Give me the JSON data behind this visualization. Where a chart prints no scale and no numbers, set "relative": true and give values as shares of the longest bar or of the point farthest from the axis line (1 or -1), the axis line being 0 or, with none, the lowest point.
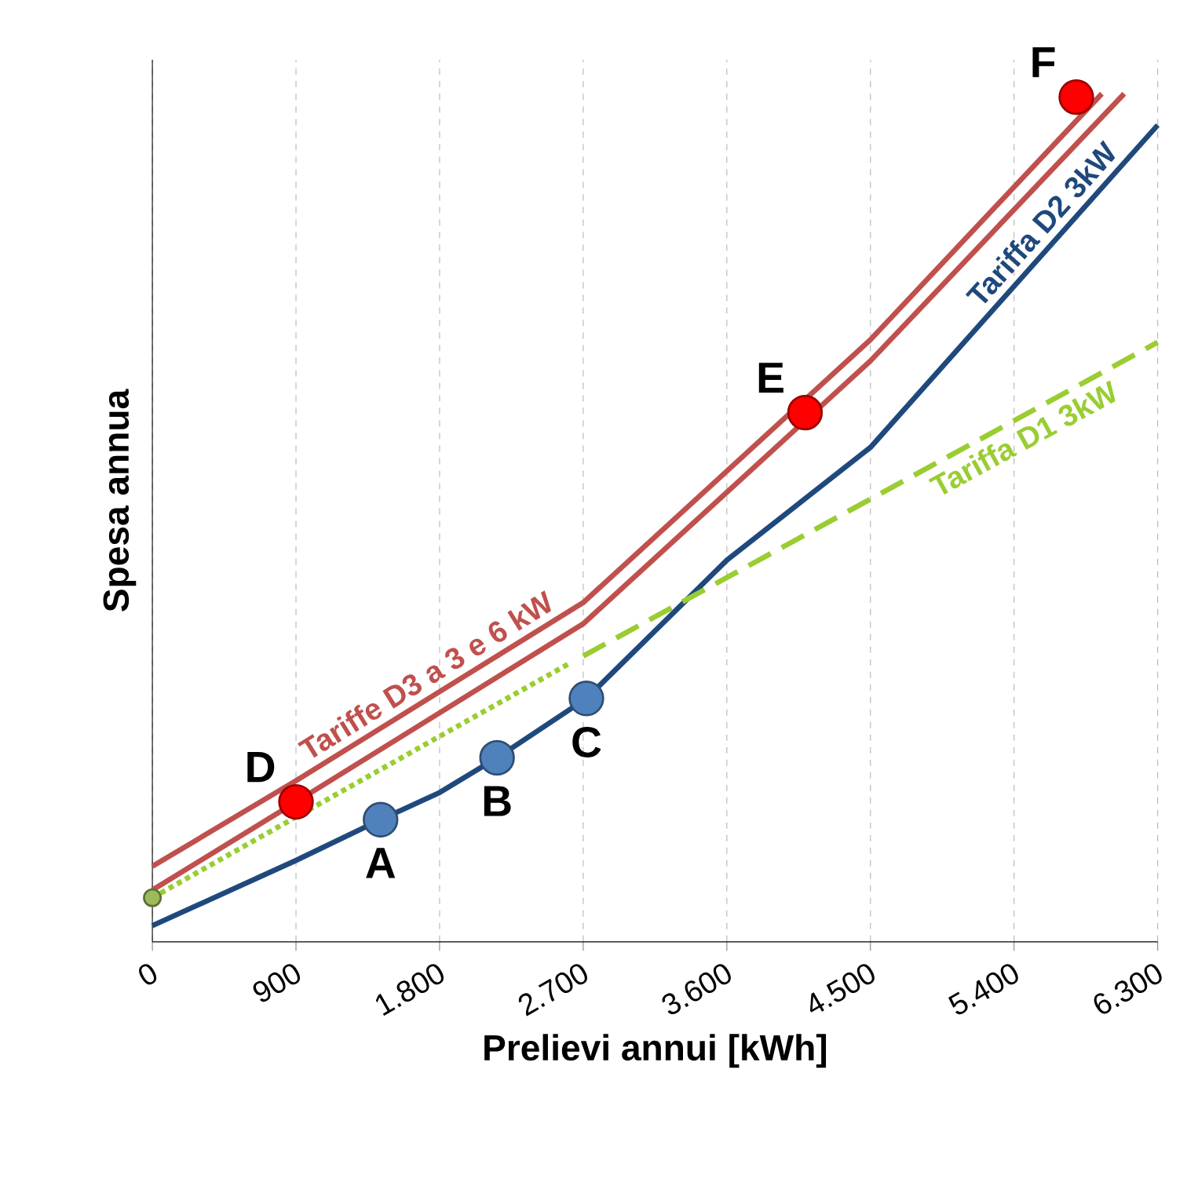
{
  "chart_data": {
    "type": "line",
    "relative": true,
    "xlabel": "Prelievi annui [kWh]",
    "ylabel": "Spesa annua",
    "xlim": [
      0,
      6300
    ],
    "xticks": [
      0,
      900,
      {
        "value": 1800,
        "label": "1.800"
      },
      {
        "value": 2700,
        "label": "2.700"
      },
      {
        "value": 3600,
        "label": "3.600"
      },
      {
        "value": 4500,
        "label": "4.500"
      },
      {
        "value": 5400,
        "label": "5.400"
      },
      {
        "value": 6300,
        "label": "6.300"
      }
    ],
    "grid": "x",
    "series": [
      {
        "name": "Tariffe D3 a 3 e 6 kW",
        "color": "#c0504d",
        "line_style": "solid",
        "x": [
          0,
          900,
          2700,
          4500,
          5950
        ],
        "values": [
          0.089,
          0.19,
          0.4,
          0.71,
          1.0
        ]
      },
      {
        "color": "#c0504d",
        "line_style": "solid",
        "x": [
          0,
          900,
          2700,
          4500,
          6090
        ],
        "values": [
          0.061,
          0.165,
          0.375,
          0.685,
          1.0
        ]
      },
      {
        "name": "Tariffa D2 3kW",
        "color": "#1f497d",
        "line_style": "solid",
        "x": [
          0,
          900,
          1430,
          1800,
          2160,
          2720,
          3600,
          4500,
          6300
        ],
        "values": [
          0.019,
          0.096,
          0.144,
          0.176,
          0.217,
          0.287,
          0.45,
          0.583,
          0.963
        ]
      },
      {
        "color": "#9acd32",
        "line_style": "dotted",
        "x": [
          0,
          2620
        ],
        "values": [
          0.052,
          0.329
        ]
      },
      {
        "name": "Tariffa D1 3kW",
        "color": "#9acd32",
        "line_style": "dashed",
        "x": [
          2700,
          6300
        ],
        "values": [
          0.337,
          0.707
        ]
      },
      {
        "type": "scatter",
        "marker": "circle",
        "color": "#9bbb59",
        "x": [
          0
        ],
        "values": [
          0.052
        ]
      },
      {
        "type": "scatter",
        "marker": "circle",
        "colors": [
          "#ff0000",
          "#4f81bd",
          "#4f81bd",
          "#4f81bd",
          "#ff0000",
          "#ff0000"
        ],
        "x": [
          900,
          1430,
          2160,
          2720,
          4090,
          5790
        ],
        "values": [
          0.165,
          0.144,
          0.217,
          0.287,
          0.624,
          0.996
        ]
      }
    ],
    "annotations": [
      {
        "text": "A",
        "x": 1430,
        "y": 0.144
      },
      {
        "text": "B",
        "x": 2160,
        "y": 0.217
      },
      {
        "text": "C",
        "x": 2720,
        "y": 0.287
      },
      {
        "text": "D",
        "x": 900,
        "y": 0.165
      },
      {
        "text": "E",
        "x": 4090,
        "y": 0.624
      },
      {
        "text": "F",
        "x": 5790,
        "y": 0.996
      }
    ]
  }
}
